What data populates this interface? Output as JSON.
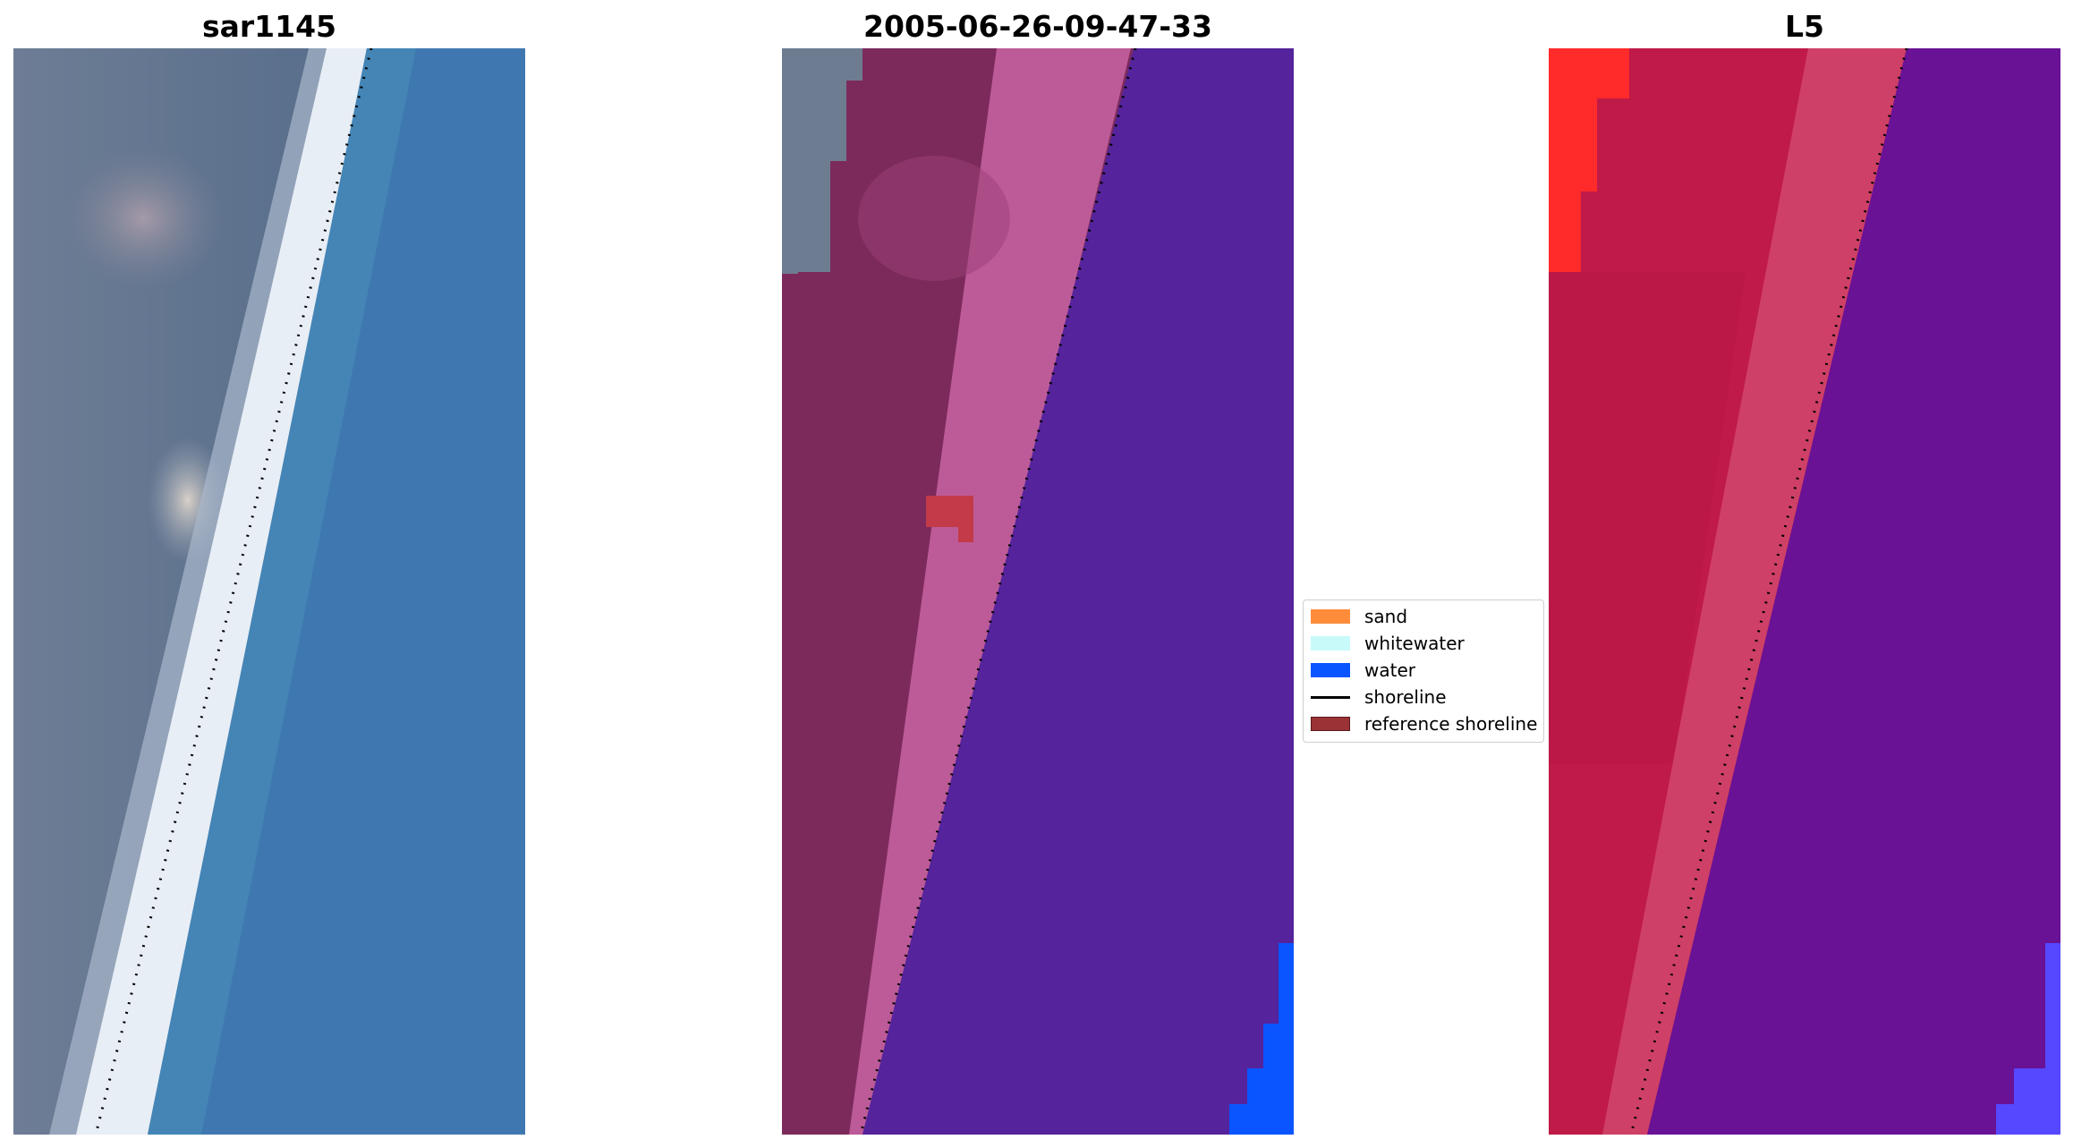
{
  "panels": [
    {
      "title": "sar1145"
    },
    {
      "title": "2005-06-26-09-47-33"
    },
    {
      "title": "L5"
    }
  ],
  "legend": {
    "items": [
      {
        "label": "sand",
        "color": "#ff8c3a",
        "kind": "patch"
      },
      {
        "label": "whitewater",
        "color": "#c8fafa",
        "kind": "patch"
      },
      {
        "label": "water",
        "color": "#0a55ff",
        "kind": "patch"
      },
      {
        "label": "shoreline",
        "color": "#000000",
        "kind": "line"
      },
      {
        "label": "reference shoreline",
        "color": "#9a3236",
        "kind": "patch"
      }
    ]
  },
  "colors": {
    "sea_rgb": "#3d76ad",
    "land_rgb": "#6f7e96",
    "surf_rgb": "#e6eef5",
    "classified_water_mask": "#55239b",
    "classified_land": "#7c2a5c",
    "classified_beach": "#bd5b98",
    "l5_land": "#c01a48",
    "l5_water": "#6a1295",
    "l5_bright": "#ff2a2a",
    "l5_corner": "#5548ff"
  }
}
